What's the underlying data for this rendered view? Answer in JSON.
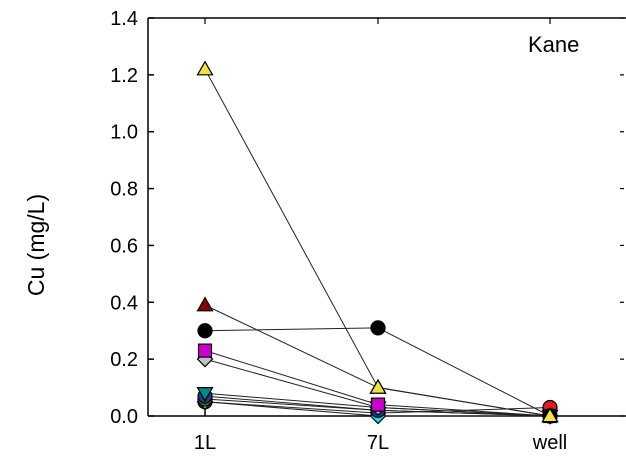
{
  "chart_data": {
    "type": "line",
    "title": "",
    "annotation": "Kane",
    "xlabel": "",
    "ylabel": "Cu (mg/L)",
    "categories": [
      "1L",
      "7L",
      "well"
    ],
    "y_ticks": [
      "0.0",
      "0.2",
      "0.4",
      "0.6",
      "0.8",
      "1.0",
      "1.2",
      "1.4"
    ],
    "ylim": [
      0,
      1.4
    ],
    "grid": false,
    "legend": "none",
    "series": [
      {
        "marker": "triangle-up",
        "color": "#f0e442",
        "values": [
          1.22,
          0.1,
          0.0
        ]
      },
      {
        "marker": "triangle-up",
        "color": "#8b0000",
        "values": [
          0.39,
          0.1,
          0.0
        ]
      },
      {
        "marker": "circle",
        "color": "#000000",
        "values": [
          0.3,
          0.31,
          0.0
        ]
      },
      {
        "marker": "square",
        "color": "#cc00cc",
        "values": [
          0.23,
          0.04,
          0.0
        ]
      },
      {
        "marker": "diamond",
        "color": "#c0c0c0",
        "values": [
          0.2,
          0.03,
          0.0
        ]
      },
      {
        "marker": "triangle-down",
        "color": "#008b8b",
        "values": [
          0.08,
          0.03,
          0.0
        ]
      },
      {
        "marker": "circle",
        "color": "#1e3a8a",
        "values": [
          0.07,
          0.02,
          0.0
        ]
      },
      {
        "marker": "circle",
        "color": "#228b22",
        "values": [
          0.06,
          0.02,
          0.0
        ]
      },
      {
        "marker": "diamond",
        "color": "#00e5ee",
        "values": [
          0.05,
          0.0,
          0.0
        ]
      },
      {
        "marker": "circle",
        "color": "#e41a1c",
        "values": [
          0.05,
          0.01,
          0.03
        ]
      }
    ]
  }
}
